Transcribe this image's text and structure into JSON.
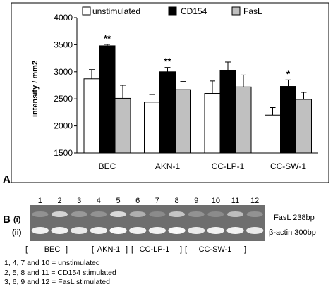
{
  "panel_a_label": "A",
  "panel_b_label": "B",
  "chart_data": {
    "type": "bar",
    "title": "",
    "xlabel": "",
    "ylabel": "intensity / mm2",
    "ylim": [
      1500,
      4000
    ],
    "yticks": [
      1500,
      2000,
      2500,
      3000,
      3500,
      4000
    ],
    "grid": false,
    "legend_position": "top",
    "categories": [
      "BEC",
      "AKN-1",
      "CC-LP-1",
      "CC-SW-1"
    ],
    "series": [
      {
        "name": "unstimulated",
        "color": "#ffffff",
        "values": [
          2870,
          2440,
          2600,
          2200
        ],
        "errors": [
          170,
          140,
          230,
          140
        ]
      },
      {
        "name": "CD154",
        "color": "#000000",
        "values": [
          3480,
          3000,
          3030,
          2730
        ],
        "errors": [
          25,
          80,
          150,
          120
        ]
      },
      {
        "name": "FasL",
        "color": "#c0c0c0",
        "values": [
          2510,
          2670,
          2720,
          2490
        ],
        "errors": [
          240,
          150,
          220,
          130
        ]
      }
    ],
    "annotations": [
      {
        "category": "BEC",
        "series": "CD154",
        "text": "**"
      },
      {
        "category": "AKN-1",
        "series": "CD154",
        "text": "**"
      },
      {
        "category": "CC-SW-1",
        "series": "CD154",
        "text": "*"
      }
    ]
  },
  "gel": {
    "lane_numbers": [
      "1",
      "2",
      "3",
      "4",
      "5",
      "6",
      "7",
      "8",
      "9",
      "10",
      "11",
      "12"
    ],
    "row_labels": [
      "(i)",
      "(ii)"
    ],
    "band_labels": [
      "FasL 238bp",
      "β-actin 300bp"
    ],
    "fasl_intensity": [
      0.25,
      0.7,
      0.3,
      0.25,
      0.75,
      0.45,
      0.2,
      0.6,
      0.25,
      0.2,
      0.55,
      0.25
    ],
    "actin_intensity": [
      0.9,
      0.9,
      0.85,
      0.9,
      0.95,
      0.9,
      0.9,
      0.95,
      0.85,
      0.9,
      0.9,
      0.85
    ],
    "group_labels": [
      "BEC",
      "AKN-1",
      "CC-LP-1",
      "CC-SW-1"
    ],
    "brackets": [
      "[",
      "]",
      "[",
      "]",
      "[",
      "]",
      "[",
      "]"
    ]
  },
  "notes": [
    "1, 4, 7 and 10 = unstimulated",
    "2, 5, 8 and 11 = CD154 stimulated",
    "3, 6, 9 and 12 = FasL stimulated"
  ]
}
